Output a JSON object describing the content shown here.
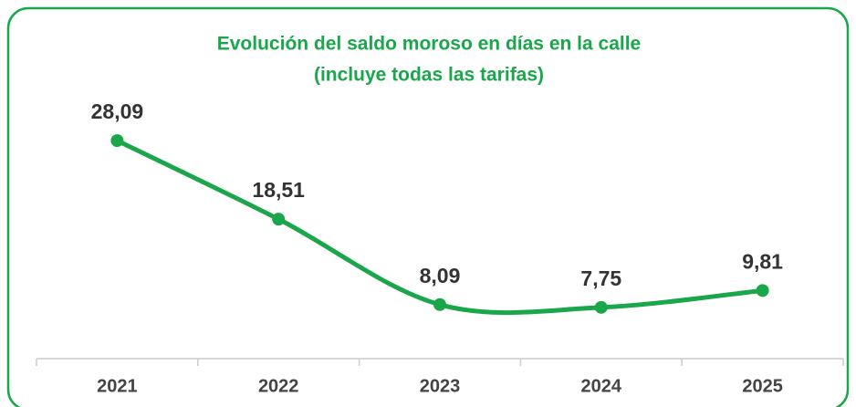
{
  "chart_data": {
    "type": "line",
    "title": [
      "Evolución del saldo moroso en días en la calle",
      "(incluye todas las tarifas)"
    ],
    "categories": [
      "2021",
      "2022",
      "2023",
      "2024",
      "2025"
    ],
    "values": [
      28.09,
      18.51,
      8.09,
      7.75,
      9.81
    ],
    "value_labels": [
      "28,09",
      "18,51",
      "8,09",
      "7,75",
      "9,81"
    ],
    "color": "#1aa64a",
    "ylim": [
      1.5,
      35
    ]
  }
}
